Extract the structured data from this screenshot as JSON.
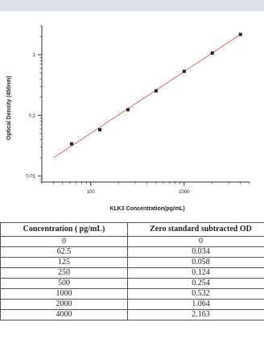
{
  "chart_data": {
    "type": "scatter",
    "xlabel": "KLK3  Concentration(pg/mL)",
    "ylabel": "Optical Density (450nm)",
    "x_scale": "log",
    "y_scale": "log",
    "xlim": [
      30,
      5000
    ],
    "ylim": [
      0.008,
      3
    ],
    "x_ticks": [
      100,
      1000
    ],
    "x_tick_labels": [
      "100",
      "1000"
    ],
    "y_ticks": [
      0.01,
      0.1,
      1
    ],
    "y_tick_labels": [
      "0.01",
      "0.1",
      "1"
    ],
    "series": [
      {
        "x": [
          62.5,
          125,
          250,
          500,
          1000,
          2000,
          4000
        ],
        "y": [
          0.034,
          0.058,
          0.124,
          0.254,
          0.532,
          1.064,
          2.163
        ]
      }
    ],
    "fit_line": {
      "x": [
        40,
        4000
      ],
      "y": [
        0.02,
        2.163
      ]
    },
    "colors": {
      "points": "#222222",
      "fit_line": "#e06060"
    }
  },
  "table": {
    "headers": [
      "Concentration ( pg/mL)",
      "Zero standard subtracted OD"
    ],
    "rows": [
      [
        "0",
        "0"
      ],
      [
        "62.5",
        "0.034"
      ],
      [
        "125",
        "0.058"
      ],
      [
        "250",
        "0.124"
      ],
      [
        "500",
        "0.254"
      ],
      [
        "1000",
        "0.532"
      ],
      [
        "2000",
        "1.064"
      ],
      [
        "4000",
        "2.163"
      ]
    ]
  }
}
